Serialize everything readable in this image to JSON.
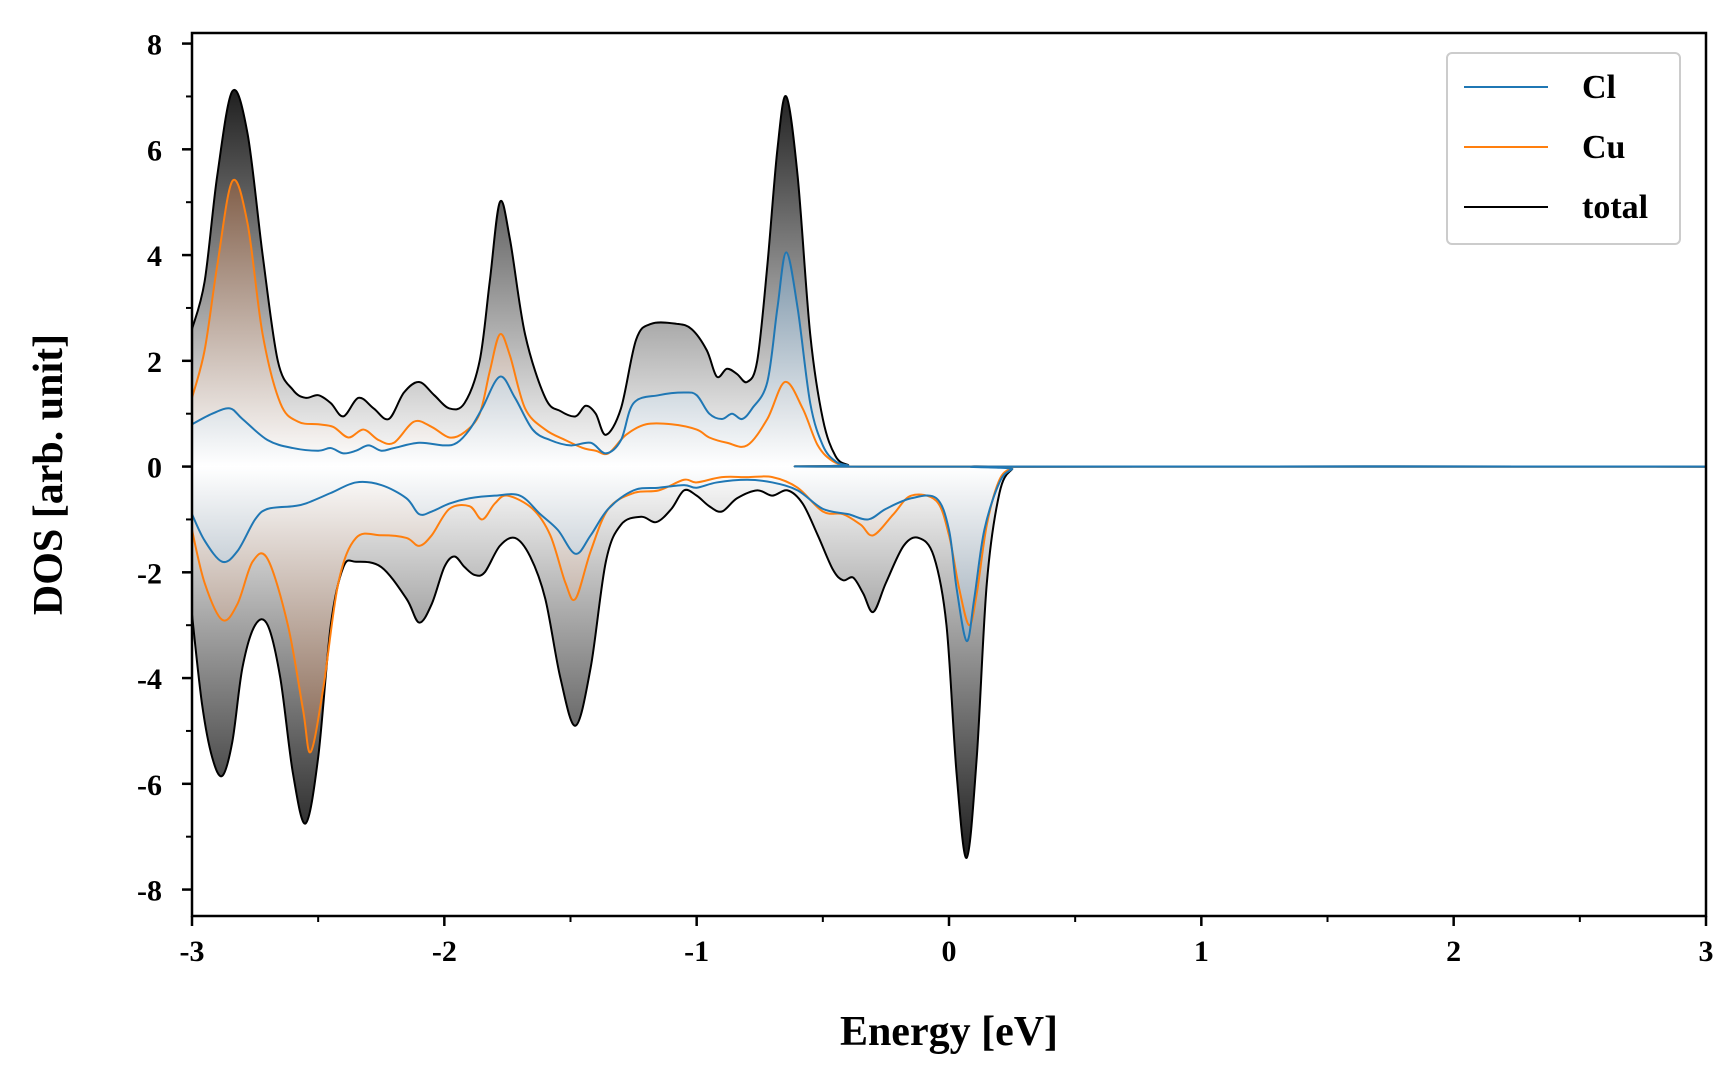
{
  "chart_data": {
    "type": "area",
    "xlabel": "Energy [eV]",
    "ylabel": "DOS [arb. unit]",
    "xlim": [
      -3,
      3
    ],
    "ylim": [
      -8.5,
      8.2
    ],
    "x_ticks": [
      -3,
      -2,
      -1,
      0,
      1,
      2,
      3
    ],
    "y_ticks": [
      -8,
      -6,
      -4,
      -2,
      0,
      2,
      4,
      6,
      8
    ],
    "grid": false,
    "legend_position": "top-right",
    "fill": "gradient from white at 0 to series color at peak",
    "series": [
      {
        "name": "Cl",
        "color": "#1f77b4",
        "up": [
          [
            -3,
            0.8
          ],
          [
            -2.92,
            1.0
          ],
          [
            -2.85,
            1.1
          ],
          [
            -2.8,
            0.9
          ],
          [
            -2.7,
            0.5
          ],
          [
            -2.6,
            0.35
          ],
          [
            -2.5,
            0.3
          ],
          [
            -2.45,
            0.35
          ],
          [
            -2.4,
            0.25
          ],
          [
            -2.35,
            0.3
          ],
          [
            -2.3,
            0.4
          ],
          [
            -2.25,
            0.3
          ],
          [
            -2.2,
            0.35
          ],
          [
            -2.1,
            0.45
          ],
          [
            -2.0,
            0.4
          ],
          [
            -1.95,
            0.45
          ],
          [
            -1.9,
            0.7
          ],
          [
            -1.85,
            1.1
          ],
          [
            -1.78,
            1.7
          ],
          [
            -1.72,
            1.3
          ],
          [
            -1.65,
            0.7
          ],
          [
            -1.58,
            0.5
          ],
          [
            -1.5,
            0.4
          ],
          [
            -1.42,
            0.45
          ],
          [
            -1.36,
            0.25
          ],
          [
            -1.3,
            0.5
          ],
          [
            -1.25,
            1.2
          ],
          [
            -1.15,
            1.35
          ],
          [
            -1.05,
            1.4
          ],
          [
            -1.0,
            1.35
          ],
          [
            -0.95,
            1.0
          ],
          [
            -0.9,
            0.9
          ],
          [
            -0.86,
            1.0
          ],
          [
            -0.82,
            0.9
          ],
          [
            -0.78,
            1.1
          ],
          [
            -0.72,
            1.6
          ],
          [
            -0.68,
            3.0
          ],
          [
            -0.645,
            4.05
          ],
          [
            -0.6,
            3.0
          ],
          [
            -0.55,
            1.2
          ],
          [
            -0.5,
            0.4
          ],
          [
            -0.45,
            0.1
          ],
          [
            -0.4,
            0.02
          ],
          [
            -0.35,
            0
          ],
          [
            3,
            0
          ]
        ],
        "down": [
          [
            -3,
            -0.9
          ],
          [
            -2.95,
            -1.4
          ],
          [
            -2.88,
            -1.8
          ],
          [
            -2.82,
            -1.6
          ],
          [
            -2.75,
            -1.0
          ],
          [
            -2.7,
            -0.8
          ],
          [
            -2.6,
            -0.75
          ],
          [
            -2.55,
            -0.7
          ],
          [
            -2.45,
            -0.5
          ],
          [
            -2.35,
            -0.3
          ],
          [
            -2.25,
            -0.35
          ],
          [
            -2.15,
            -0.6
          ],
          [
            -2.1,
            -0.9
          ],
          [
            -2.05,
            -0.85
          ],
          [
            -1.98,
            -0.7
          ],
          [
            -1.9,
            -0.6
          ],
          [
            -1.8,
            -0.55
          ],
          [
            -1.7,
            -0.55
          ],
          [
            -1.62,
            -0.9
          ],
          [
            -1.55,
            -1.2
          ],
          [
            -1.48,
            -1.65
          ],
          [
            -1.42,
            -1.3
          ],
          [
            -1.35,
            -0.8
          ],
          [
            -1.25,
            -0.45
          ],
          [
            -1.15,
            -0.4
          ],
          [
            -1.05,
            -0.35
          ],
          [
            -1.0,
            -0.4
          ],
          [
            -0.92,
            -0.3
          ],
          [
            -0.8,
            -0.25
          ],
          [
            -0.7,
            -0.3
          ],
          [
            -0.6,
            -0.45
          ],
          [
            -0.5,
            -0.8
          ],
          [
            -0.4,
            -0.9
          ],
          [
            -0.32,
            -1.0
          ],
          [
            -0.25,
            -0.8
          ],
          [
            -0.15,
            -0.6
          ],
          [
            -0.05,
            -0.6
          ],
          [
            0.0,
            -1.2
          ],
          [
            0.03,
            -2.3
          ],
          [
            0.07,
            -3.3
          ],
          [
            0.1,
            -2.5
          ],
          [
            0.14,
            -1.2
          ],
          [
            0.2,
            -0.3
          ],
          [
            0.25,
            -0.05
          ],
          [
            0.3,
            0
          ],
          [
            3,
            0
          ]
        ]
      },
      {
        "name": "Cu",
        "color": "#ff7f0e",
        "up": [
          [
            -3,
            1.3
          ],
          [
            -2.95,
            2.2
          ],
          [
            -2.9,
            3.8
          ],
          [
            -2.84,
            5.4
          ],
          [
            -2.78,
            4.6
          ],
          [
            -2.72,
            2.5
          ],
          [
            -2.65,
            1.2
          ],
          [
            -2.58,
            0.85
          ],
          [
            -2.5,
            0.8
          ],
          [
            -2.44,
            0.75
          ],
          [
            -2.38,
            0.55
          ],
          [
            -2.32,
            0.7
          ],
          [
            -2.26,
            0.5
          ],
          [
            -2.2,
            0.45
          ],
          [
            -2.12,
            0.85
          ],
          [
            -2.05,
            0.75
          ],
          [
            -1.98,
            0.55
          ],
          [
            -1.92,
            0.65
          ],
          [
            -1.86,
            1.0
          ],
          [
            -1.82,
            1.8
          ],
          [
            -1.78,
            2.5
          ],
          [
            -1.74,
            2.1
          ],
          [
            -1.68,
            1.1
          ],
          [
            -1.6,
            0.7
          ],
          [
            -1.52,
            0.5
          ],
          [
            -1.45,
            0.35
          ],
          [
            -1.4,
            0.3
          ],
          [
            -1.35,
            0.25
          ],
          [
            -1.28,
            0.6
          ],
          [
            -1.2,
            0.8
          ],
          [
            -1.1,
            0.8
          ],
          [
            -1.0,
            0.7
          ],
          [
            -0.95,
            0.55
          ],
          [
            -0.88,
            0.45
          ],
          [
            -0.8,
            0.4
          ],
          [
            -0.72,
            0.9
          ],
          [
            -0.65,
            1.6
          ],
          [
            -0.58,
            1.1
          ],
          [
            -0.52,
            0.4
          ],
          [
            -0.46,
            0.1
          ],
          [
            -0.4,
            0.02
          ],
          [
            -0.35,
            0
          ],
          [
            3,
            0
          ]
        ],
        "down": [
          [
            -3,
            -1.2
          ],
          [
            -2.95,
            -2.2
          ],
          [
            -2.88,
            -2.9
          ],
          [
            -2.82,
            -2.6
          ],
          [
            -2.76,
            -1.8
          ],
          [
            -2.7,
            -1.75
          ],
          [
            -2.62,
            -3.0
          ],
          [
            -2.56,
            -4.6
          ],
          [
            -2.53,
            -5.4
          ],
          [
            -2.48,
            -4.2
          ],
          [
            -2.42,
            -2.2
          ],
          [
            -2.35,
            -1.35
          ],
          [
            -2.25,
            -1.3
          ],
          [
            -2.15,
            -1.35
          ],
          [
            -2.1,
            -1.5
          ],
          [
            -2.05,
            -1.3
          ],
          [
            -1.98,
            -0.8
          ],
          [
            -1.9,
            -0.75
          ],
          [
            -1.85,
            -1.0
          ],
          [
            -1.8,
            -0.7
          ],
          [
            -1.75,
            -0.55
          ],
          [
            -1.65,
            -0.8
          ],
          [
            -1.58,
            -1.3
          ],
          [
            -1.52,
            -2.2
          ],
          [
            -1.48,
            -2.5
          ],
          [
            -1.42,
            -1.6
          ],
          [
            -1.35,
            -0.8
          ],
          [
            -1.25,
            -0.5
          ],
          [
            -1.15,
            -0.45
          ],
          [
            -1.05,
            -0.25
          ],
          [
            -1.0,
            -0.3
          ],
          [
            -0.9,
            -0.2
          ],
          [
            -0.8,
            -0.2
          ],
          [
            -0.7,
            -0.2
          ],
          [
            -0.6,
            -0.4
          ],
          [
            -0.5,
            -0.85
          ],
          [
            -0.42,
            -0.9
          ],
          [
            -0.35,
            -1.1
          ],
          [
            -0.3,
            -1.3
          ],
          [
            -0.22,
            -0.9
          ],
          [
            -0.15,
            -0.55
          ],
          [
            -0.05,
            -0.65
          ],
          [
            0.0,
            -1.3
          ],
          [
            0.04,
            -2.3
          ],
          [
            0.08,
            -3.0
          ],
          [
            0.11,
            -2.4
          ],
          [
            0.15,
            -1.1
          ],
          [
            0.2,
            -0.25
          ],
          [
            0.25,
            -0.03
          ],
          [
            0.3,
            0
          ],
          [
            3,
            0
          ]
        ]
      },
      {
        "name": "total",
        "color": "#000000",
        "up": [
          [
            -3,
            2.6
          ],
          [
            -2.95,
            3.5
          ],
          [
            -2.9,
            5.5
          ],
          [
            -2.84,
            7.1
          ],
          [
            -2.78,
            6.3
          ],
          [
            -2.72,
            4.0
          ],
          [
            -2.66,
            2.0
          ],
          [
            -2.6,
            1.45
          ],
          [
            -2.55,
            1.3
          ],
          [
            -2.5,
            1.35
          ],
          [
            -2.45,
            1.2
          ],
          [
            -2.4,
            0.95
          ],
          [
            -2.34,
            1.3
          ],
          [
            -2.28,
            1.1
          ],
          [
            -2.22,
            0.9
          ],
          [
            -2.16,
            1.4
          ],
          [
            -2.1,
            1.6
          ],
          [
            -2.04,
            1.35
          ],
          [
            -1.98,
            1.1
          ],
          [
            -1.92,
            1.2
          ],
          [
            -1.86,
            2.0
          ],
          [
            -1.82,
            3.5
          ],
          [
            -1.78,
            5.0
          ],
          [
            -1.74,
            4.3
          ],
          [
            -1.68,
            2.5
          ],
          [
            -1.6,
            1.3
          ],
          [
            -1.54,
            1.05
          ],
          [
            -1.48,
            0.95
          ],
          [
            -1.44,
            1.15
          ],
          [
            -1.4,
            1.0
          ],
          [
            -1.36,
            0.6
          ],
          [
            -1.3,
            1.1
          ],
          [
            -1.24,
            2.4
          ],
          [
            -1.18,
            2.7
          ],
          [
            -1.08,
            2.7
          ],
          [
            -1.02,
            2.6
          ],
          [
            -0.96,
            2.2
          ],
          [
            -0.92,
            1.7
          ],
          [
            -0.88,
            1.85
          ],
          [
            -0.84,
            1.75
          ],
          [
            -0.8,
            1.6
          ],
          [
            -0.76,
            2.0
          ],
          [
            -0.72,
            3.8
          ],
          [
            -0.68,
            6.0
          ],
          [
            -0.645,
            7.0
          ],
          [
            -0.6,
            5.5
          ],
          [
            -0.55,
            2.5
          ],
          [
            -0.5,
            0.9
          ],
          [
            -0.45,
            0.2
          ],
          [
            -0.4,
            0.03
          ],
          [
            -0.35,
            0
          ],
          [
            3,
            0
          ]
        ],
        "down": [
          [
            -3,
            -2.8
          ],
          [
            -2.96,
            -4.5
          ],
          [
            -2.92,
            -5.5
          ],
          [
            -2.88,
            -5.85
          ],
          [
            -2.84,
            -5.2
          ],
          [
            -2.8,
            -3.8
          ],
          [
            -2.75,
            -3.0
          ],
          [
            -2.7,
            -3.0
          ],
          [
            -2.65,
            -4.0
          ],
          [
            -2.6,
            -5.8
          ],
          [
            -2.55,
            -6.75
          ],
          [
            -2.5,
            -5.5
          ],
          [
            -2.45,
            -3.0
          ],
          [
            -2.4,
            -1.9
          ],
          [
            -2.35,
            -1.8
          ],
          [
            -2.25,
            -1.9
          ],
          [
            -2.15,
            -2.5
          ],
          [
            -2.1,
            -2.95
          ],
          [
            -2.05,
            -2.6
          ],
          [
            -2.0,
            -1.9
          ],
          [
            -1.96,
            -1.7
          ],
          [
            -1.92,
            -1.9
          ],
          [
            -1.88,
            -2.05
          ],
          [
            -1.84,
            -2.0
          ],
          [
            -1.78,
            -1.5
          ],
          [
            -1.72,
            -1.35
          ],
          [
            -1.66,
            -1.7
          ],
          [
            -1.6,
            -2.5
          ],
          [
            -1.54,
            -4.0
          ],
          [
            -1.48,
            -4.9
          ],
          [
            -1.42,
            -3.8
          ],
          [
            -1.36,
            -1.8
          ],
          [
            -1.3,
            -1.1
          ],
          [
            -1.22,
            -0.95
          ],
          [
            -1.16,
            -1.05
          ],
          [
            -1.1,
            -0.8
          ],
          [
            -1.05,
            -0.45
          ],
          [
            -1.0,
            -0.55
          ],
          [
            -0.95,
            -0.75
          ],
          [
            -0.9,
            -0.85
          ],
          [
            -0.84,
            -0.6
          ],
          [
            -0.76,
            -0.45
          ],
          [
            -0.7,
            -0.55
          ],
          [
            -0.64,
            -0.45
          ],
          [
            -0.58,
            -0.7
          ],
          [
            -0.52,
            -1.3
          ],
          [
            -0.46,
            -1.95
          ],
          [
            -0.42,
            -2.15
          ],
          [
            -0.38,
            -2.1
          ],
          [
            -0.34,
            -2.4
          ],
          [
            -0.3,
            -2.75
          ],
          [
            -0.25,
            -2.2
          ],
          [
            -0.18,
            -1.5
          ],
          [
            -0.12,
            -1.35
          ],
          [
            -0.06,
            -1.7
          ],
          [
            -0.01,
            -3.0
          ],
          [
            0.03,
            -5.8
          ],
          [
            0.07,
            -7.4
          ],
          [
            0.11,
            -5.5
          ],
          [
            0.15,
            -2.2
          ],
          [
            0.2,
            -0.5
          ],
          [
            0.25,
            -0.05
          ],
          [
            0.3,
            0
          ],
          [
            3,
            0
          ]
        ]
      }
    ]
  }
}
